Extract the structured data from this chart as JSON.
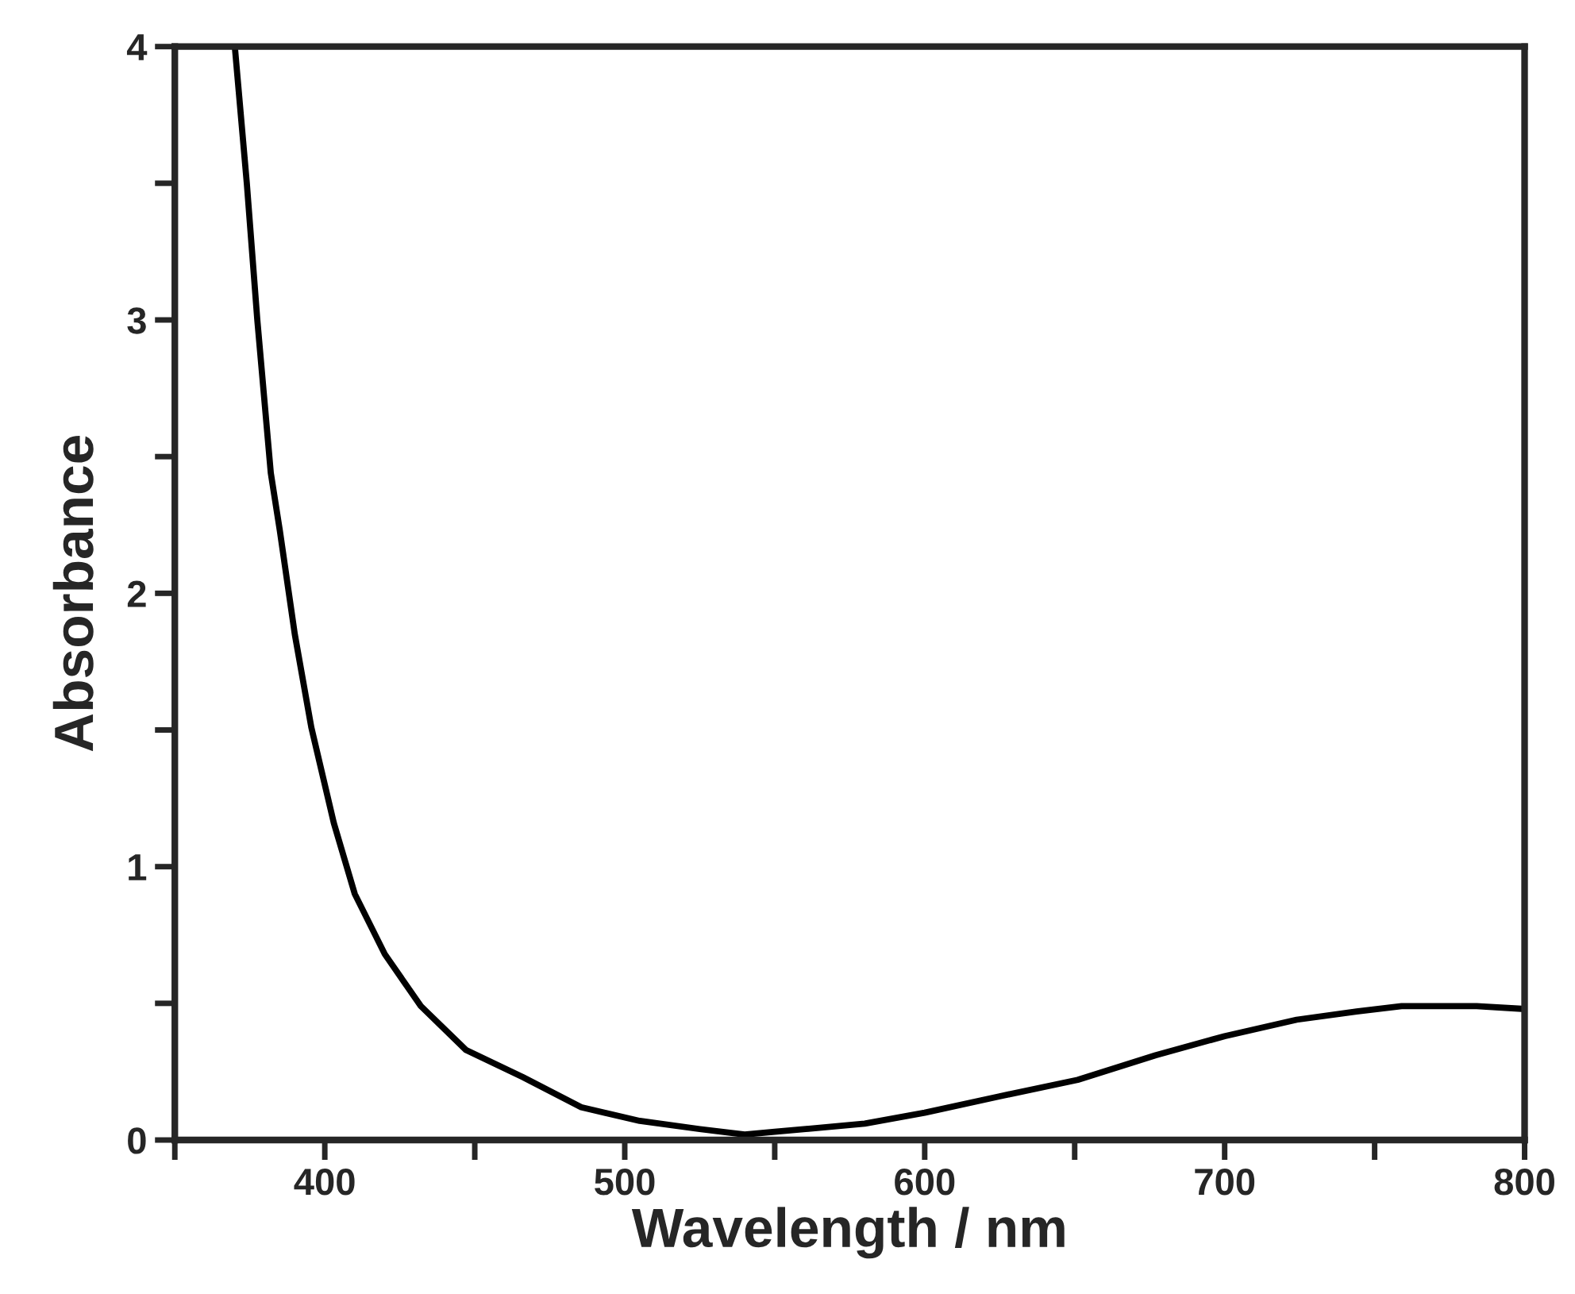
{
  "chart_data": {
    "type": "line",
    "xlabel": "Wavelength / nm",
    "ylabel": "Absorbance",
    "xlim": [
      350,
      800
    ],
    "ylim": [
      0,
      4
    ],
    "xticks": [
      {
        "value": 350,
        "label": null
      },
      400,
      {
        "value": 450,
        "label": null
      },
      500,
      {
        "value": 550,
        "label": null
      },
      600,
      {
        "value": 650,
        "label": null
      },
      700,
      {
        "value": 750,
        "label": null
      },
      800
    ],
    "yticks": [
      0,
      {
        "value": 0.5,
        "label": null
      },
      1,
      {
        "value": 1.5,
        "label": null
      },
      2,
      {
        "value": 2.5,
        "label": null
      },
      3,
      {
        "value": 3.5,
        "label": null
      },
      4
    ],
    "grid": false,
    "legend": false,
    "marker": "none",
    "line_style": "solid",
    "series": [
      {
        "color": "#000000",
        "x": [
          370,
          374,
          377.5,
          382,
          385,
          390,
          395.5,
          403,
          410,
          420,
          432,
          447,
          466,
          485.5,
          505,
          525,
          540,
          550,
          580,
          600,
          625,
          651,
          677,
          700,
          724,
          744,
          759,
          784,
          799
        ],
        "values": [
          4.0,
          3.5,
          3.0,
          2.44,
          2.23,
          1.85,
          1.51,
          1.16,
          0.9,
          0.68,
          0.49,
          0.33,
          0.23,
          0.12,
          0.07,
          0.04,
          0.02,
          0.03,
          0.06,
          0.1,
          0.16,
          0.22,
          0.31,
          0.38,
          0.44,
          0.47,
          0.49,
          0.49,
          0.48
        ]
      }
    ]
  }
}
